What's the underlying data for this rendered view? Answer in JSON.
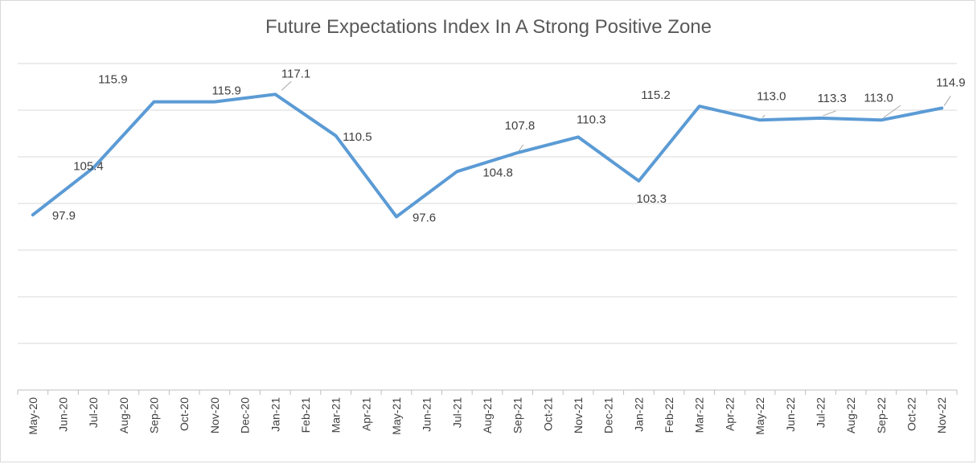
{
  "chart_data": {
    "type": "line",
    "title": "Future Expectations Index In A Strong Positive Zone",
    "xlabel": "",
    "ylabel": "",
    "ylim": [
      70,
      122
    ],
    "grid": true,
    "categories": [
      "May-20",
      "Jun-20",
      "Jul-20",
      "Aug-20",
      "Sep-20",
      "Oct-20",
      "Nov-20",
      "Dec-20",
      "Jan-21",
      "Feb-21",
      "Mar-21",
      "Apr-21",
      "May-21",
      "Jun-21",
      "Jul-21",
      "Aug-21",
      "Sep-21",
      "Oct-21",
      "Nov-21",
      "Dec-21",
      "Jan-22",
      "Feb-22",
      "Mar-22",
      "Apr-22",
      "May-22",
      "Jun-22",
      "Jul-22",
      "Aug-22",
      "Sep-22",
      "Oct-22",
      "Nov-22"
    ],
    "series": [
      {
        "name": "",
        "color": "#5b9bd5",
        "x": [
          "May-20",
          "Jul-20",
          "Sep-20",
          "Nov-20",
          "Jan-21",
          "Mar-21",
          "May-21",
          "Jul-21",
          "Sep-21",
          "Nov-21",
          "Jan-22",
          "Mar-22",
          "May-22",
          "Jul-22",
          "Sep-22",
          "Nov-22"
        ],
        "values": [
          97.9,
          105.4,
          115.9,
          115.9,
          117.1,
          110.5,
          97.6,
          104.8,
          107.8,
          110.3,
          103.3,
          115.2,
          113.0,
          113.3,
          113.0,
          114.9
        ],
        "labels": [
          "97.9",
          "105.4",
          "115.9",
          "115.9",
          "117.1",
          "110.5",
          "97.6",
          "104.8",
          "107.8",
          "110.3",
          "103.3",
          "115.2",
          "113.0",
          "113.3",
          "113.0",
          "114.9"
        ]
      }
    ]
  }
}
